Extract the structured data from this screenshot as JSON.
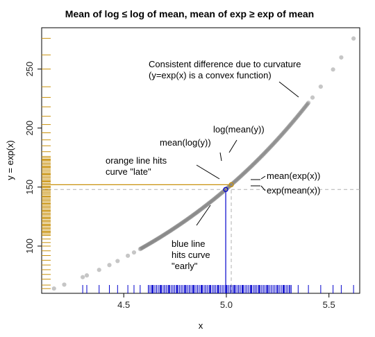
{
  "chart_data": {
    "type": "scatter",
    "title": "Mean of log ≤ log of mean, mean of exp ≥ exp of mean",
    "xlabel": "x",
    "ylabel": "y = exp(x)",
    "xlim": [
      4.1,
      5.65
    ],
    "ylim": [
      60,
      285
    ],
    "x_ticks": [
      "4.5",
      "5.0",
      "5.5"
    ],
    "y_ticks": [
      "100",
      "150",
      "200",
      "250"
    ],
    "grid": false,
    "series": [
      {
        "values_of": "points",
        "function": "exp",
        "x_min": 4.16,
        "x_max": 5.62,
        "color": "#808080"
      }
    ],
    "x_rug": [
      4.3,
      4.32,
      4.38,
      4.43,
      4.47,
      4.52,
      4.55,
      4.58,
      4.62,
      4.64,
      4.66,
      4.68,
      4.7,
      4.72,
      4.74,
      4.76,
      4.78,
      4.8,
      4.82,
      4.84,
      4.86,
      4.88,
      4.9,
      4.92,
      4.94,
      4.96,
      4.98,
      5.0,
      5.02,
      5.04,
      5.06,
      5.08,
      5.1,
      5.12,
      5.14,
      5.16,
      5.18,
      5.2,
      5.22,
      5.25,
      5.28,
      5.31,
      5.35,
      5.4,
      5.46,
      5.52,
      5.56,
      5.62
    ],
    "y_rug": [
      64,
      67,
      72,
      76,
      80,
      84,
      88,
      92,
      96,
      100,
      103,
      106,
      109,
      112,
      115,
      118,
      121,
      124,
      127,
      130,
      133,
      136,
      139,
      142,
      145,
      148,
      150,
      152,
      155,
      158,
      161,
      164,
      167,
      170,
      173,
      176,
      180,
      185,
      190,
      196,
      203,
      210,
      218,
      226,
      235,
      250,
      262,
      276
    ],
    "mean_x": 4.997,
    "mean_log_y": 4.997,
    "log_mean_y": 5.024,
    "exp_mean_x": 148,
    "mean_exp_x": 152,
    "annotations": {
      "curvature": [
        "Consistent difference due to curvature",
        "(y=exp(x) is a convex function)"
      ],
      "mean_log": "mean(log(y))",
      "log_mean": "log(mean(y))",
      "orange": [
        "orange line hits",
        "curve \"late\""
      ],
      "mean_exp": "mean(exp(x))",
      "exp_mean": "exp(mean(x))",
      "blue": [
        "blue line",
        "hits curve",
        "\"early\""
      ]
    },
    "colors": {
      "points": "#808080",
      "orange": "#c8900a",
      "blue": "#0000cc",
      "dashed": "#b0b0b0"
    }
  }
}
